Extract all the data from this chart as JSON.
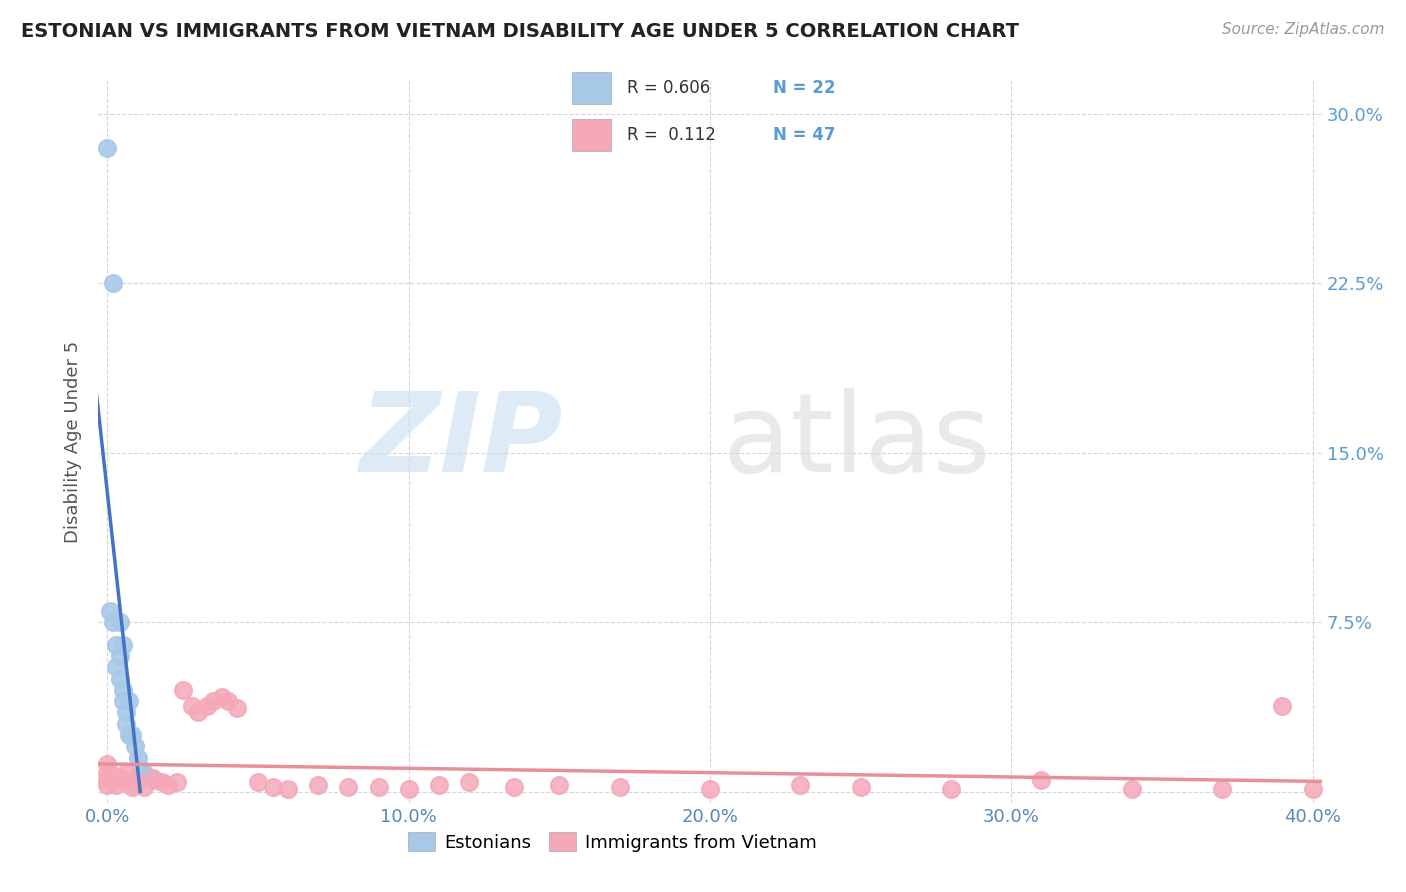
{
  "title": "ESTONIAN VS IMMIGRANTS FROM VIETNAM DISABILITY AGE UNDER 5 CORRELATION CHART",
  "source": "Source: ZipAtlas.com",
  "ylabel": "Disability Age Under 5",
  "r_estonian": 0.606,
  "n_estonian": 22,
  "r_vietnam": 0.112,
  "n_vietnam": 47,
  "estonian_color": "#a8c8e8",
  "vietnam_color": "#f4a8b8",
  "estonian_line_color": "#4472c4",
  "vietnam_line_color": "#e8909a",
  "bg_color": "#ffffff",
  "xlim": [
    -0.003,
    0.403
  ],
  "ylim": [
    -0.005,
    0.315
  ],
  "x_ticks": [
    0.0,
    0.1,
    0.2,
    0.3,
    0.4
  ],
  "x_tick_labels": [
    "0.0%",
    "10.0%",
    "20.0%",
    "30.0%",
    "40.0%"
  ],
  "y_ticks": [
    0.0,
    0.075,
    0.15,
    0.225,
    0.3
  ],
  "y_tick_labels": [
    "",
    "7.5%",
    "15.0%",
    "22.5%",
    "30.0%"
  ],
  "estonian_x": [
    0.0,
    0.001,
    0.002,
    0.002,
    0.003,
    0.003,
    0.004,
    0.004,
    0.004,
    0.005,
    0.005,
    0.005,
    0.006,
    0.006,
    0.007,
    0.007,
    0.008,
    0.009,
    0.01,
    0.011,
    0.012,
    0.015
  ],
  "estonian_y": [
    0.285,
    0.08,
    0.225,
    0.075,
    0.065,
    0.055,
    0.075,
    0.06,
    0.05,
    0.065,
    0.045,
    0.04,
    0.035,
    0.03,
    0.04,
    0.025,
    0.025,
    0.02,
    0.015,
    0.01,
    0.008,
    0.005
  ],
  "vietnam_x": [
    0.0,
    0.0,
    0.0,
    0.0,
    0.001,
    0.002,
    0.003,
    0.004,
    0.005,
    0.006,
    0.007,
    0.008,
    0.01,
    0.012,
    0.015,
    0.018,
    0.02,
    0.023,
    0.025,
    0.028,
    0.03,
    0.033,
    0.035,
    0.038,
    0.04,
    0.043,
    0.05,
    0.055,
    0.06,
    0.07,
    0.08,
    0.09,
    0.1,
    0.11,
    0.12,
    0.135,
    0.15,
    0.17,
    0.2,
    0.23,
    0.25,
    0.28,
    0.31,
    0.34,
    0.37,
    0.39,
    0.4
  ],
  "vietnam_y": [
    0.003,
    0.005,
    0.008,
    0.012,
    0.008,
    0.005,
    0.003,
    0.006,
    0.005,
    0.008,
    0.004,
    0.002,
    0.004,
    0.002,
    0.006,
    0.004,
    0.003,
    0.004,
    0.045,
    0.038,
    0.035,
    0.038,
    0.04,
    0.042,
    0.04,
    0.037,
    0.004,
    0.002,
    0.001,
    0.003,
    0.002,
    0.002,
    0.001,
    0.003,
    0.004,
    0.002,
    0.003,
    0.002,
    0.001,
    0.003,
    0.002,
    0.001,
    0.005,
    0.001,
    0.001,
    0.038,
    0.001
  ]
}
